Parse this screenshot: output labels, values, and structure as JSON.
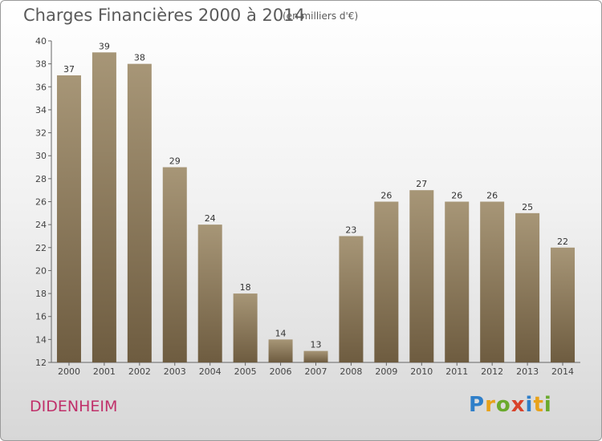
{
  "chart_data": {
    "type": "bar",
    "title": "Charges Financières 2000 à 2014",
    "subtitle": "(en milliers d'€)",
    "categories": [
      "2000",
      "2001",
      "2002",
      "2003",
      "2004",
      "2005",
      "2006",
      "2007",
      "2008",
      "2009",
      "2010",
      "2011",
      "2012",
      "2013",
      "2014"
    ],
    "values": [
      37,
      39,
      38,
      29,
      24,
      18,
      14,
      13,
      23,
      26,
      27,
      26,
      26,
      25,
      22
    ],
    "ylim": [
      12,
      40
    ],
    "yticks": [
      12,
      14,
      16,
      18,
      20,
      22,
      24,
      26,
      28,
      30,
      32,
      34,
      36,
      38,
      40
    ],
    "grid": false,
    "bar_color_top": "#a79677",
    "bar_color_bottom": "#6e5c40"
  },
  "footer": {
    "town": "DIDENHEIM",
    "logo_letters": [
      "P",
      "r",
      "o",
      "x",
      "i",
      "t",
      "i"
    ]
  }
}
